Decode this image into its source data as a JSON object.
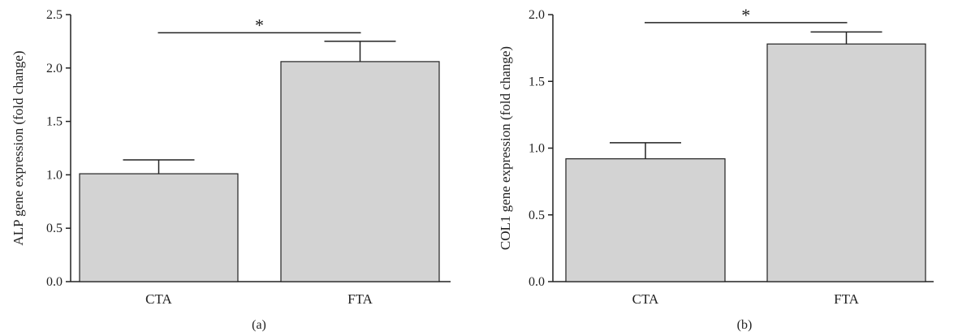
{
  "chart_data": [
    {
      "type": "bar",
      "panel_label": "(a)",
      "categories": [
        "CTA",
        "FTA"
      ],
      "values": [
        1.01,
        2.06
      ],
      "errors": [
        0.13,
        0.19
      ],
      "ylabel": "ALP gene expression (fold change)",
      "ylim": [
        0,
        2.5
      ],
      "yticks": [
        "0.0",
        "0.5",
        "1.0",
        "1.5",
        "2.0",
        "2.5"
      ],
      "significance": {
        "pair": [
          "CTA",
          "FTA"
        ],
        "label": "*",
        "y": 2.33
      },
      "bar_color": "#d3d3d3",
      "grid": false
    },
    {
      "type": "bar",
      "panel_label": "(b)",
      "categories": [
        "CTA",
        "FTA"
      ],
      "values": [
        0.92,
        1.78
      ],
      "errors": [
        0.12,
        0.09
      ],
      "ylabel": "COL1 gene expression (fold change)",
      "ylim": [
        0,
        2.0
      ],
      "yticks": [
        "0.0",
        "0.5",
        "1.0",
        "1.5",
        "2.0"
      ],
      "significance": {
        "pair": [
          "CTA",
          "FTA"
        ],
        "label": "*",
        "y": 1.94
      },
      "bar_color": "#d3d3d3",
      "grid": false
    }
  ]
}
